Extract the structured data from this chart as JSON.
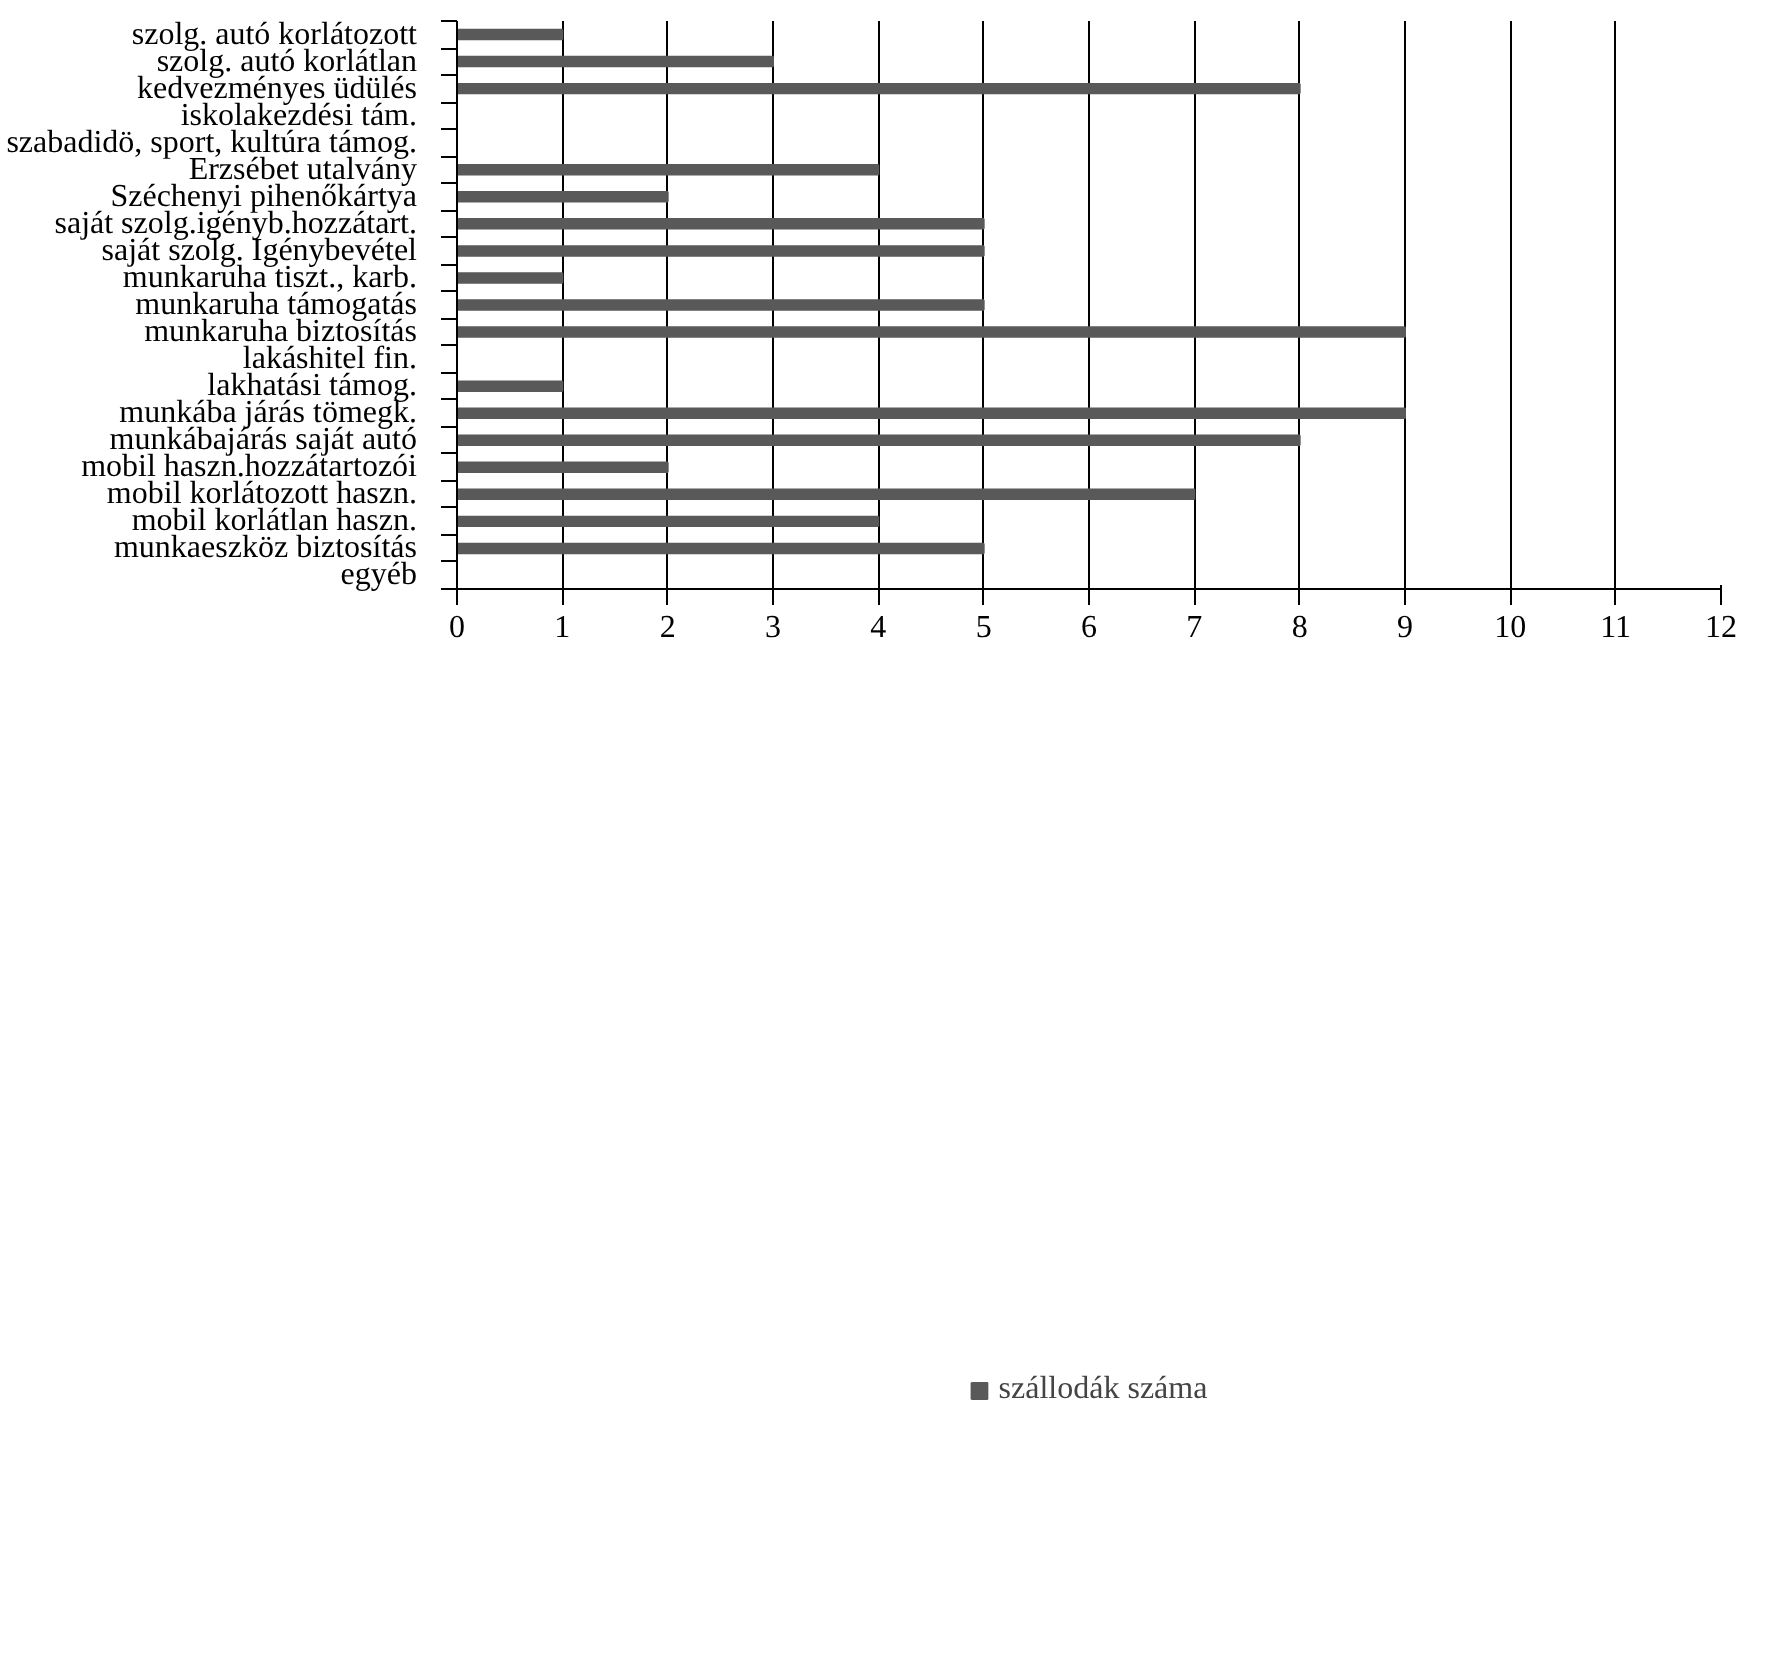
{
  "chart_data": {
    "type": "bar",
    "orientation": "horizontal",
    "categories": [
      "szolg. autó korlátozott",
      "szolg. autó korlátlan",
      "kedvezményes üdülés",
      "iskolakezdési tám.",
      "szabadidö, sport, kultúra támog.",
      "Erzsébet utalvány",
      "Széchenyi pihenőkártya",
      "saját szolg.igényb.hozzátart.",
      "saját szolg. Igénybevétel",
      "munkaruha tiszt., karb.",
      "munkaruha támogatás",
      "munkaruha biztosítás",
      "lakáshitel fin.",
      "lakhatási támog.",
      "munkába járás tömegk.",
      "munkábajárás saját autó",
      "mobil haszn.hozzátartozói",
      "mobil korlátozott haszn.",
      "mobil korlátlan haszn.",
      "munkaeszköz biztosítás",
      "egyéb"
    ],
    "series": [
      {
        "name": "szállodák száma",
        "color": "#595959",
        "values": [
          1,
          3,
          8,
          0,
          0,
          4,
          2,
          5,
          5,
          1,
          5,
          9,
          0,
          1,
          9,
          8,
          2,
          7,
          4,
          5,
          0
        ]
      }
    ],
    "xlim": [
      0,
      12
    ],
    "xticks": [
      0,
      1,
      2,
      3,
      4,
      5,
      6,
      7,
      8,
      9,
      10,
      11,
      12
    ],
    "grid": "x",
    "legend": "bottom"
  }
}
